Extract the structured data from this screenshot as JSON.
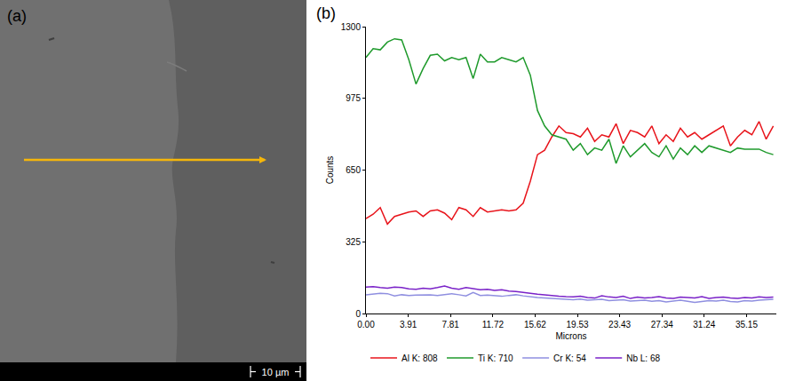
{
  "image_panel": {
    "label": "(a)",
    "scale_bar": "10 µm"
  },
  "chart_data": {
    "type": "line",
    "annotations": [
      "(b)"
    ],
    "x_label": "Microns",
    "y_label": "Counts",
    "x": [
      0,
      0.66,
      1.32,
      1.98,
      2.64,
      3.3,
      3.96,
      4.62,
      5.28,
      5.94,
      6.6,
      7.26,
      7.92,
      8.58,
      9.24,
      9.9,
      10.56,
      11.22,
      11.88,
      12.54,
      13.2,
      13.86,
      14.52,
      15.18,
      15.84,
      16.5,
      17.16,
      17.82,
      18.48,
      19.14,
      19.8,
      20.46,
      21.12,
      21.78,
      22.44,
      23.1,
      23.76,
      24.42,
      25.08,
      25.74,
      26.4,
      27.06,
      27.72,
      28.38,
      29.04,
      29.7,
      30.36,
      31.02,
      31.68,
      32.34,
      33.0,
      33.66,
      34.32,
      34.98,
      35.64,
      36.3,
      36.96,
      37.62
    ],
    "series": [
      {
        "name": "Al K: 808",
        "color": "#e8141b",
        "values": [
          430,
          450,
          480,
          405,
          440,
          450,
          460,
          465,
          440,
          465,
          470,
          455,
          425,
          480,
          470,
          440,
          480,
          460,
          465,
          470,
          465,
          470,
          500,
          600,
          720,
          740,
          800,
          850,
          820,
          815,
          800,
          840,
          780,
          810,
          800,
          860,
          770,
          830,
          820,
          800,
          850,
          770,
          810,
          780,
          840,
          800,
          820,
          790,
          810,
          830,
          850,
          760,
          800,
          830,
          810,
          870,
          790,
          850
        ]
      },
      {
        "name": "Ti K: 710",
        "color": "#1f9a2c",
        "values": [
          1160,
          1200,
          1195,
          1230,
          1245,
          1240,
          1150,
          1040,
          1110,
          1170,
          1175,
          1145,
          1160,
          1150,
          1160,
          1065,
          1175,
          1140,
          1140,
          1160,
          1150,
          1140,
          1160,
          1080,
          920,
          850,
          810,
          800,
          790,
          740,
          770,
          720,
          750,
          740,
          790,
          680,
          760,
          710,
          740,
          770,
          730,
          710,
          760,
          700,
          750,
          720,
          760,
          730,
          760,
          750,
          740,
          730,
          750,
          745,
          745,
          745,
          730,
          720
        ]
      },
      {
        "name": "Cr K: 54",
        "color": "#8f8fe0",
        "values": [
          85,
          88,
          92,
          90,
          80,
          85,
          82,
          84,
          86,
          85,
          82,
          86,
          90,
          85,
          80,
          95,
          82,
          84,
          80,
          78,
          82,
          85,
          80,
          75,
          72,
          70,
          68,
          66,
          64,
          62,
          65,
          60,
          62,
          64,
          58,
          60,
          62,
          56,
          58,
          60,
          55,
          58,
          52,
          56,
          60,
          55,
          50,
          54,
          58,
          56,
          60,
          54,
          52,
          58,
          56,
          60,
          62,
          64
        ]
      },
      {
        "name": "Nb L: 68",
        "color": "#7a22c8",
        "values": [
          120,
          122,
          118,
          115,
          120,
          118,
          112,
          110,
          115,
          112,
          118,
          125,
          115,
          110,
          118,
          112,
          108,
          110,
          105,
          108,
          102,
          100,
          95,
          90,
          88,
          85,
          80,
          78,
          76,
          75,
          78,
          72,
          70,
          80,
          75,
          72,
          78,
          68,
          74,
          70,
          72,
          76,
          70,
          68,
          74,
          72,
          70,
          76,
          68,
          72,
          74,
          70,
          68,
          72,
          70,
          75,
          72,
          74
        ]
      }
    ],
    "xlim": [
      0,
      37.9
    ],
    "xticks": [
      {
        "value": 0,
        "label": "0.00"
      },
      3.91,
      7.81,
      11.72,
      15.62,
      19.53,
      23.43,
      27.34,
      31.24,
      35.15
    ],
    "ylim": [
      0,
      1300
    ],
    "yticks": [
      0,
      325,
      650,
      975,
      1300
    ],
    "grid": false,
    "legend": "bottom"
  }
}
